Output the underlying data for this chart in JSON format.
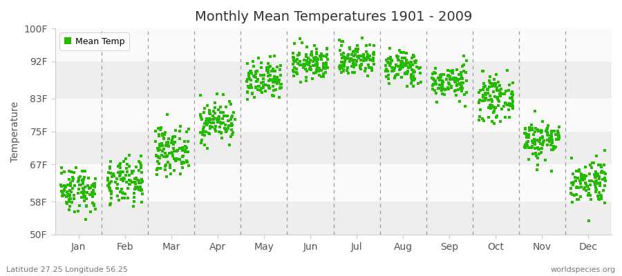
{
  "title": "Monthly Mean Temperatures 1901 - 2009",
  "ylabel": "Temperature",
  "xlabel_months": [
    "Jan",
    "Feb",
    "Mar",
    "Apr",
    "May",
    "Jun",
    "Jul",
    "Aug",
    "Sep",
    "Oct",
    "Nov",
    "Dec"
  ],
  "ytick_labels": [
    "50F",
    "58F",
    "67F",
    "75F",
    "83F",
    "92F",
    "100F"
  ],
  "ytick_values": [
    50,
    58,
    67,
    75,
    83,
    92,
    100
  ],
  "ylim": [
    50,
    100
  ],
  "legend_label": "Mean Temp",
  "dot_color": "#22bb00",
  "background_color": "#f5f5f5",
  "band_colors": [
    "#eeeeee",
    "#fafafa"
  ],
  "bottom_left_text": "Latitude 27.25 Longitude 56.25",
  "bottom_right_text": "worldspecies.org",
  "title_fontsize": 14,
  "axis_fontsize": 10,
  "tick_fontsize": 10,
  "monthly_mean_temps_F": [
    61.0,
    62.5,
    70.5,
    77.5,
    87.0,
    91.5,
    92.5,
    90.5,
    87.0,
    83.0,
    73.0,
    63.0
  ],
  "monthly_std_F": [
    2.8,
    2.8,
    2.8,
    2.5,
    2.5,
    2.0,
    2.0,
    2.0,
    2.0,
    2.5,
    2.5,
    2.8
  ],
  "n_years": 109,
  "seed": 42
}
